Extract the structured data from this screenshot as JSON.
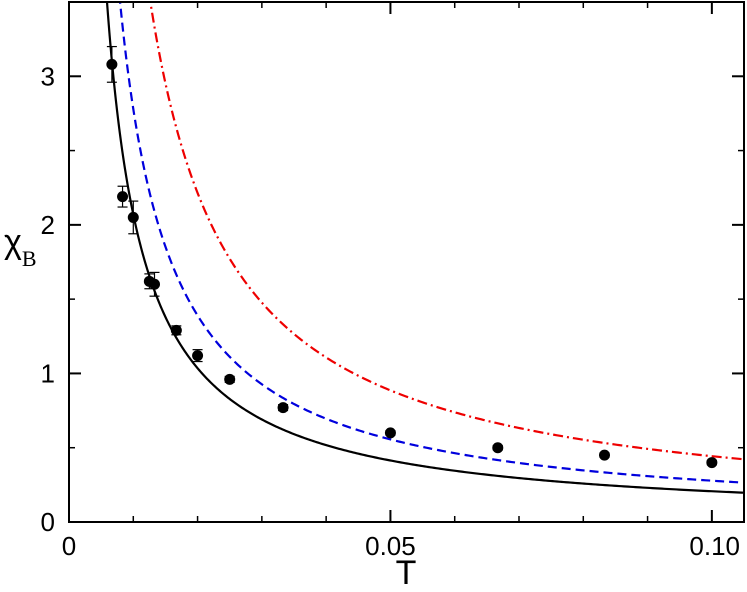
{
  "chart_data": {
    "type": "scatter",
    "title": "",
    "xlabel": "T",
    "ylabel": {
      "symbol": "χ",
      "subscript": "B"
    },
    "xlim": [
      0,
      0.105
    ],
    "ylim": [
      0,
      3.5
    ],
    "grid": false,
    "legend": "none",
    "x_ticks": [
      {
        "value": 0,
        "label": "0"
      },
      {
        "value": 0.05,
        "label": "0.05"
      },
      {
        "value": 0.1,
        "label": "0.10"
      }
    ],
    "x_minor_ticks": [
      0.01,
      0.02,
      0.03,
      0.04,
      0.06,
      0.07,
      0.08,
      0.09
    ],
    "y_ticks": [
      {
        "value": 0,
        "label": "0"
      },
      {
        "value": 1,
        "label": "1"
      },
      {
        "value": 2,
        "label": "2"
      },
      {
        "value": 3,
        "label": "3"
      }
    ],
    "y_minor_ticks": [
      0.5,
      1.5,
      2.5
    ],
    "data_points": {
      "color": "#000000",
      "points": [
        {
          "x": 0.00667,
          "y": 3.08,
          "err": 0.12
        },
        {
          "x": 0.00833,
          "y": 2.19,
          "err": 0.07
        },
        {
          "x": 0.01,
          "y": 2.05,
          "err": 0.11
        },
        {
          "x": 0.0125,
          "y": 1.62,
          "err": 0.05
        },
        {
          "x": 0.0133,
          "y": 1.6,
          "err": 0.08
        },
        {
          "x": 0.0167,
          "y": 1.29,
          "err": 0.03
        },
        {
          "x": 0.02,
          "y": 1.12,
          "err": 0.04
        },
        {
          "x": 0.025,
          "y": 0.96,
          "err": 0.02
        },
        {
          "x": 0.0333,
          "y": 0.77,
          "err": 0.02
        },
        {
          "x": 0.05,
          "y": 0.6,
          "err": 0.015
        },
        {
          "x": 0.0667,
          "y": 0.5,
          "err": 0.015
        },
        {
          "x": 0.0833,
          "y": 0.45,
          "err": 0.015
        },
        {
          "x": 0.1,
          "y": 0.4,
          "err": 0.015
        }
      ]
    },
    "series": [
      {
        "style": "solid",
        "color": "#000000",
        "coefficient": 0.0207,
        "x_start": 0.0058
      },
      {
        "style": "dashed",
        "color": "#0000dd",
        "coefficient": 0.0278,
        "x_start": 0.0043
      },
      {
        "style": "dashdot",
        "color": "#ee0000",
        "coefficient": 0.0443,
        "x_start": 0.0042
      }
    ]
  }
}
